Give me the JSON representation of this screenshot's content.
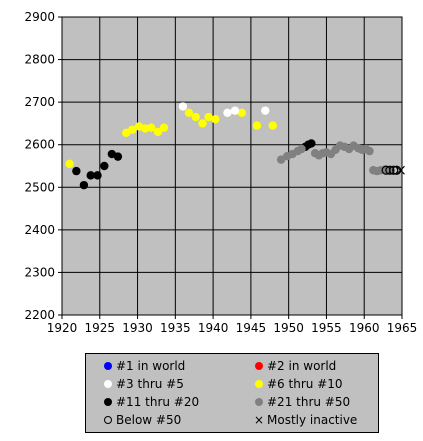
{
  "chart_data": {
    "type": "scatter",
    "xlim": [
      1920,
      1965
    ],
    "ylim": [
      2200,
      2900
    ],
    "x_ticks": [
      "1920",
      "1925",
      "1930",
      "1935",
      "1940",
      "1945",
      "1950",
      "1955",
      "1960",
      "1965"
    ],
    "y_ticks": [
      "2200",
      "2300",
      "2400",
      "2500",
      "2600",
      "2700",
      "2800",
      "2900"
    ],
    "grid": true,
    "plot_background": "#c0c0c0",
    "legend_placement": "bottom",
    "legend": [
      {
        "key": "rank1",
        "label": "#1 in world",
        "color": "#0000ff",
        "marker": "dot"
      },
      {
        "key": "rank2",
        "label": "#2 in world",
        "color": "#ff0000",
        "marker": "dot"
      },
      {
        "key": "rank3_5",
        "label": "#3 thru #5",
        "color": "#ffffff",
        "marker": "dot"
      },
      {
        "key": "rank6_10",
        "label": "#6 thru #10",
        "color": "#ffff00",
        "marker": "dot"
      },
      {
        "key": "rank11_20",
        "label": "#11 thru #20",
        "color": "#000000",
        "marker": "dot"
      },
      {
        "key": "rank21_50",
        "label": "#21 thru #50",
        "color": "#808080",
        "marker": "dot"
      },
      {
        "key": "below50",
        "label": "Below #50",
        "color": "#000000",
        "marker": "ring"
      },
      {
        "key": "inactive",
        "label": "Mostly inactive",
        "color": "#000000",
        "marker": "x"
      }
    ],
    "series": [
      {
        "key": "rank6_10",
        "points": [
          [
            1921.0,
            2555
          ],
          [
            1928.5,
            2628
          ],
          [
            1929.3,
            2635
          ],
          [
            1930.2,
            2643
          ],
          [
            1931.0,
            2638
          ],
          [
            1931.8,
            2640
          ],
          [
            1932.7,
            2630
          ],
          [
            1933.5,
            2640
          ],
          [
            1936.8,
            2675
          ],
          [
            1937.7,
            2665
          ],
          [
            1938.6,
            2650
          ],
          [
            1939.4,
            2665
          ],
          [
            1940.3,
            2660
          ],
          [
            1943.8,
            2675
          ],
          [
            1945.8,
            2645
          ],
          [
            1947.9,
            2645
          ]
        ]
      },
      {
        "key": "rank3_5",
        "points": [
          [
            1936.0,
            2690
          ],
          [
            1941.9,
            2675
          ],
          [
            1942.9,
            2680
          ],
          [
            1946.9,
            2680
          ]
        ]
      },
      {
        "key": "rank11_20",
        "points": [
          [
            1921.9,
            2538
          ],
          [
            1922.9,
            2505
          ],
          [
            1923.8,
            2528
          ],
          [
            1924.7,
            2528
          ],
          [
            1925.6,
            2550
          ],
          [
            1926.6,
            2578
          ],
          [
            1927.4,
            2572
          ],
          [
            1952.2,
            2595
          ],
          [
            1952.6,
            2600
          ],
          [
            1953.0,
            2603
          ]
        ]
      },
      {
        "key": "rank21_50",
        "points": [
          [
            1949.0,
            2565
          ],
          [
            1949.8,
            2573
          ],
          [
            1950.5,
            2578
          ],
          [
            1951.2,
            2585
          ],
          [
            1951.7,
            2590
          ],
          [
            1953.5,
            2580
          ],
          [
            1954.0,
            2575
          ],
          [
            1954.5,
            2580
          ],
          [
            1955.0,
            2582
          ],
          [
            1955.6,
            2578
          ],
          [
            1956.2,
            2588
          ],
          [
            1956.8,
            2598
          ],
          [
            1957.4,
            2595
          ],
          [
            1958.0,
            2590
          ],
          [
            1958.6,
            2598
          ],
          [
            1959.2,
            2592
          ],
          [
            1959.7,
            2588
          ],
          [
            1960.2,
            2590
          ],
          [
            1960.7,
            2585
          ],
          [
            1961.2,
            2540
          ],
          [
            1961.7,
            2538
          ],
          [
            1962.2,
            2540
          ],
          [
            1962.8,
            2542
          ],
          [
            1963.4,
            2540
          ]
        ]
      },
      {
        "key": "below50",
        "points": [
          [
            1962.9,
            2540
          ],
          [
            1963.4,
            2540
          ],
          [
            1963.9,
            2540
          ],
          [
            1964.3,
            2540
          ]
        ]
      },
      {
        "key": "inactive",
        "points": [
          [
            1964.8,
            2540
          ]
        ]
      }
    ]
  }
}
